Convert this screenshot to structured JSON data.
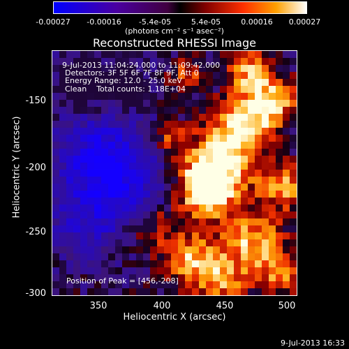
{
  "colorbar": {
    "ticks": [
      "-0.00027",
      "-0.00016",
      "-5.4e-05",
      "5.4e-05",
      "0.00016",
      "0.00027"
    ],
    "units": "(photons cm⁻² s⁻¹ asec⁻²)"
  },
  "title": "Reconstructed RHESSI Image",
  "info": {
    "time_range": "9-Jul-2013 11:04:24.000 to 11:09:42.000",
    "detectors": "Detectors: 3F 5F 6F 7F 8F 9F, Att 0",
    "energy": "Energy Range: 12.0 - 25.0 keV",
    "clean": "Clean    Total counts: 1.18E+04",
    "peak": "Position of Peak = [456,-208]"
  },
  "axes": {
    "xlabel": "Heliocentric X (arcsec)",
    "ylabel": "Heliocentric Y (arcsec)",
    "xticks": [
      "350",
      "400",
      "450",
      "500"
    ],
    "yticks": [
      "-150",
      "-200",
      "-250",
      "-300"
    ]
  },
  "timestamp": "9-Jul-2013 16:33"
}
